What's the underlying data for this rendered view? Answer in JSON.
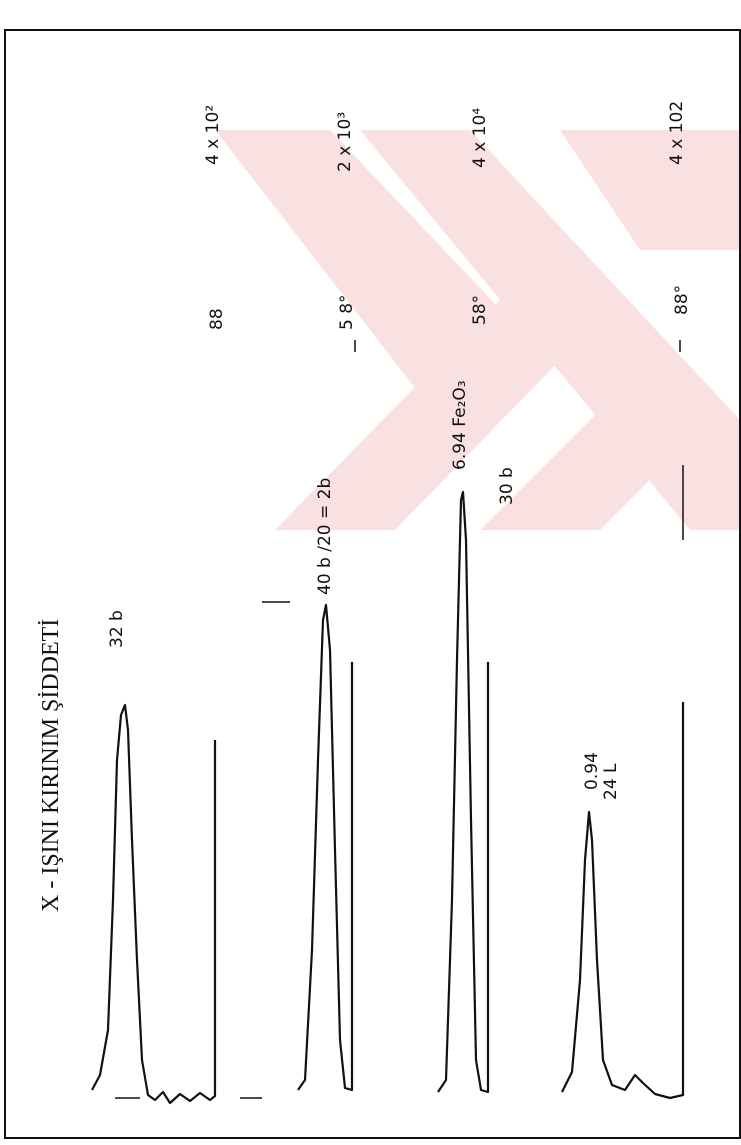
{
  "title": "X - IŞINI KIRINIM ŞİDDETİ",
  "panels": [
    {
      "peak": "32 b",
      "angle": "88",
      "scale": "4 x 10²"
    },
    {
      "peak": "40 b /20 = 2b",
      "angle": "5 8°",
      "scale": "2 x 10³"
    },
    {
      "peak": "6.94 Fe₂O₃",
      "extra": "30 b",
      "angle": "58°",
      "scale": "4 x 10⁴"
    },
    {
      "peak": "0.94",
      "extra": "24 L",
      "angle": "88°",
      "scale": "4 x 102"
    }
  ]
}
